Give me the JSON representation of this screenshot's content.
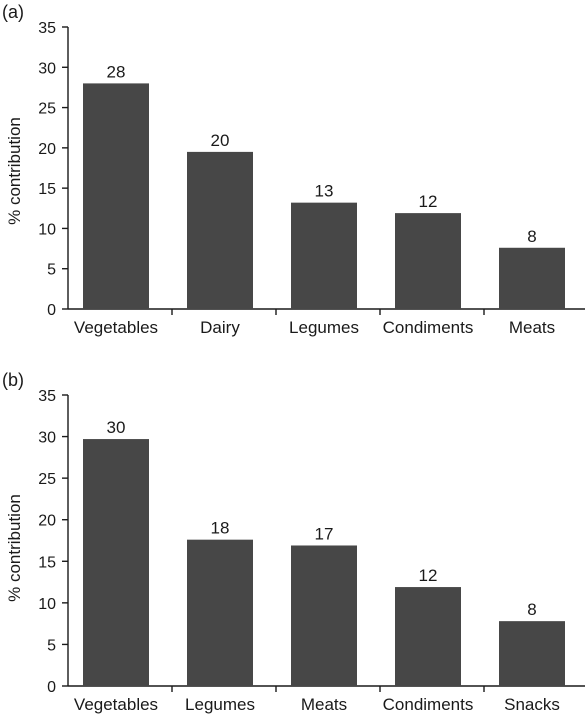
{
  "chart_data": [
    {
      "type": "bar",
      "panel_label": "(a)",
      "categories": [
        "Vegetables",
        "Dairy",
        "Legumes",
        "Condiments",
        "Meats"
      ],
      "values": [
        28,
        19.5,
        13.2,
        11.9,
        7.6
      ],
      "data_labels": [
        "28",
        "20",
        "13",
        "12",
        "8"
      ],
      "ylabel": "% contribution",
      "xlabel": "",
      "ylim": [
        0,
        35
      ],
      "yticks": [
        "0",
        "5",
        "10",
        "15",
        "20",
        "25",
        "30",
        "35"
      ],
      "grid": false,
      "bar_color": "#474747"
    },
    {
      "type": "bar",
      "panel_label": "(b)",
      "categories": [
        "Vegetables",
        "Legumes",
        "Meats",
        "Condiments",
        "Snacks"
      ],
      "values": [
        29.7,
        17.6,
        16.9,
        11.9,
        7.8
      ],
      "data_labels": [
        "30",
        "18",
        "17",
        "12",
        "8"
      ],
      "ylabel": "% contribution",
      "xlabel": "",
      "ylim": [
        0,
        35
      ],
      "yticks": [
        "0",
        "5",
        "10",
        "15",
        "20",
        "25",
        "30",
        "35"
      ],
      "grid": false,
      "bar_color": "#474747"
    }
  ]
}
